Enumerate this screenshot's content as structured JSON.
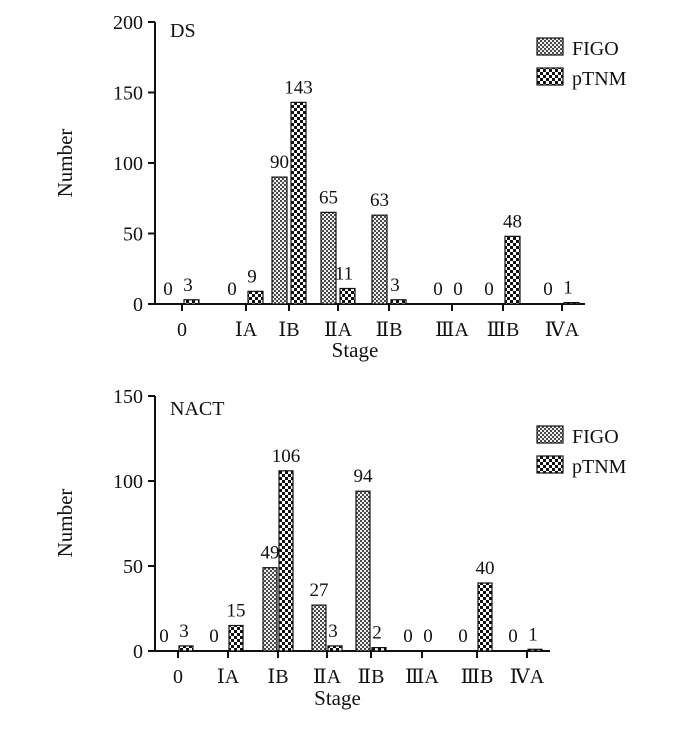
{
  "chart_data": [
    {
      "type": "bar",
      "panel_label": "DS",
      "categories": [
        "0",
        "ⅠA",
        "ⅠB",
        "ⅡA",
        "ⅡB",
        "ⅢA",
        "ⅢB",
        "ⅣA"
      ],
      "xlabel": "Stage",
      "ylabel": "Number",
      "ylim": [
        0,
        200
      ],
      "yticks": [
        0,
        50,
        100,
        150,
        200
      ],
      "grid": false,
      "legend_position": "top-right",
      "series": [
        {
          "name": "FIGO",
          "values": [
            0,
            0,
            90,
            65,
            63,
            0,
            0,
            0
          ]
        },
        {
          "name": "pTNM",
          "values": [
            3,
            9,
            143,
            11,
            3,
            0,
            48,
            1
          ]
        }
      ]
    },
    {
      "type": "bar",
      "panel_label": "NACT",
      "categories": [
        "0",
        "ⅠA",
        "ⅠB",
        "ⅡA",
        "ⅡB",
        "ⅢA",
        "ⅢB",
        "ⅣA"
      ],
      "xlabel": "Stage",
      "ylabel": "Number",
      "ylim": [
        0,
        150
      ],
      "yticks": [
        0,
        50,
        100,
        150
      ],
      "grid": false,
      "legend_position": "top-right",
      "series": [
        {
          "name": "FIGO",
          "values": [
            0,
            0,
            49,
            27,
            94,
            0,
            0,
            0
          ]
        },
        {
          "name": "pTNM",
          "values": [
            3,
            15,
            106,
            3,
            2,
            0,
            40,
            1
          ]
        }
      ]
    }
  ]
}
